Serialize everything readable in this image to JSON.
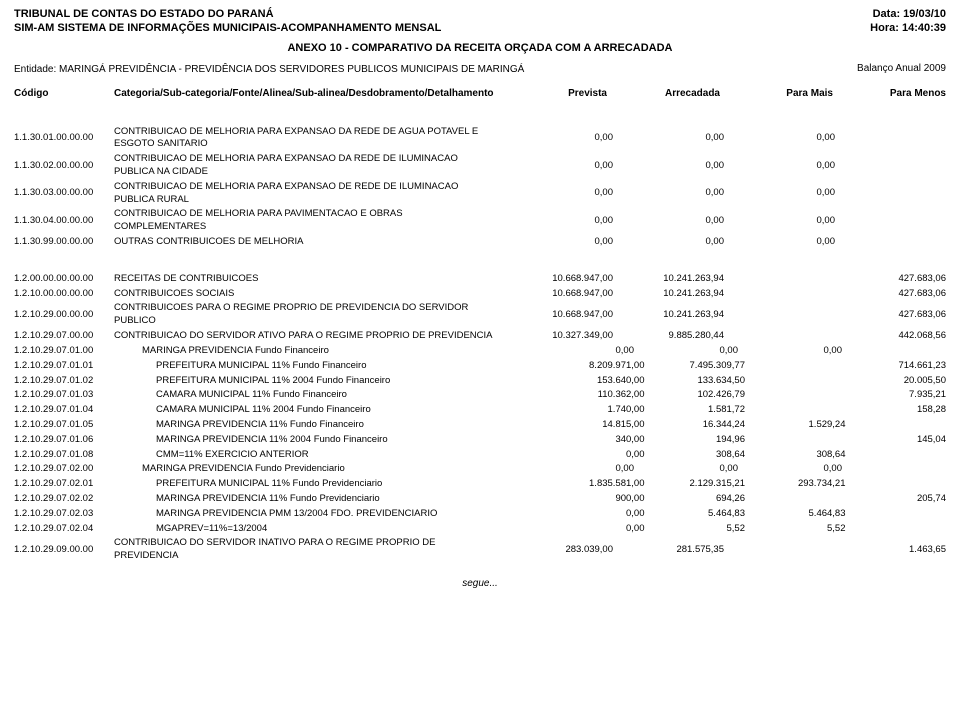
{
  "header": {
    "left1": "TRIBUNAL DE CONTAS DO ESTADO DO PARANÁ",
    "left2": "SIM-AM SISTEMA DE INFORMAÇÕES MUNICIPAIS-ACOMPANHAMENTO MENSAL",
    "right1": "Data: 19/03/10",
    "right2": "Hora: 14:40:39",
    "anexo": "ANEXO 10 - COMPARATIVO DA RECEITA ORÇADA COM A ARRECADADA",
    "entidade": "Entidade: MARINGÁ PREVIDÊNCIA - PREVIDÊNCIA DOS SERVIDORES PUBLICOS MUNICIPAIS DE MARINGÁ",
    "balanco": "Balanço Anual 2009"
  },
  "colhead": {
    "codigo": "Código",
    "desc": "Categoria/Sub-categoria/Fonte/Alinea/Sub-alinea/Desdobramento/Detalhamento",
    "prevista": "Prevista",
    "arrecadada": "Arrecadada",
    "paraMais": "Para Mais",
    "paraMenos": "Para Menos"
  },
  "block1": [
    {
      "code": "1.1.30.01.00.00.00",
      "desc": "CONTRIBUICAO DE MELHORIA PARA EXPANSAO DA REDE DE AGUA POTAVEL E ESGOTO SANITARIO",
      "v": [
        "0,00",
        "0,00",
        "0,00",
        ""
      ]
    },
    {
      "code": "1.1.30.02.00.00.00",
      "desc": "CONTRIBUICAO DE MELHORIA PARA EXPANSAO DA REDE DE ILUMINACAO PUBLICA NA CIDADE",
      "v": [
        "0,00",
        "0,00",
        "0,00",
        ""
      ]
    },
    {
      "code": "1.1.30.03.00.00.00",
      "desc": "CONTRIBUICAO DE MELHORIA PARA EXPANSAO DE REDE DE ILUMINACAO PUBLICA RURAL",
      "v": [
        "0,00",
        "0,00",
        "0,00",
        ""
      ]
    },
    {
      "code": "1.1.30.04.00.00.00",
      "desc": "CONTRIBUICAO DE MELHORIA PARA PAVIMENTACAO E OBRAS COMPLEMENTARES",
      "v": [
        "0,00",
        "0,00",
        "0,00",
        ""
      ]
    },
    {
      "code": "1.1.30.99.00.00.00",
      "desc": "OUTRAS CONTRIBUICOES DE MELHORIA",
      "v": [
        "0,00",
        "0,00",
        "0,00",
        ""
      ]
    }
  ],
  "block2": [
    {
      "code": "1.2.00.00.00.00.00",
      "desc": "RECEITAS DE CONTRIBUICOES",
      "v": [
        "10.668.947,00",
        "10.241.263,94",
        "",
        "427.683,06"
      ]
    },
    {
      "code": "1.2.10.00.00.00.00",
      "desc": "CONTRIBUICOES SOCIAIS",
      "v": [
        "10.668.947,00",
        "10.241.263,94",
        "",
        "427.683,06"
      ]
    },
    {
      "code": "1.2.10.29.00.00.00",
      "desc": "CONTRIBUICOES PARA O REGIME PROPRIO DE PREVIDENCIA DO SERVIDOR PUBLICO",
      "v": [
        "10.668.947,00",
        "10.241.263,94",
        "",
        "427.683,06"
      ]
    },
    {
      "code": "1.2.10.29.07.00.00",
      "desc": "CONTRIBUICAO DO SERVIDOR ATIVO PARA O REGIME PROPRIO DE PREVIDENCIA",
      "v": [
        "10.327.349,00",
        "9.885.280,44",
        "",
        "442.068,56"
      ]
    },
    {
      "code": "1.2.10.29.07.01.00",
      "desc": "MARINGA PREVIDENCIA Fundo Financeiro",
      "v": [
        "0,00",
        "0,00",
        "0,00",
        ""
      ],
      "indent": 2
    },
    {
      "code": "1.2.10.29.07.01.01",
      "desc": "PREFEITURA MUNICIPAL 11% Fundo Financeiro",
      "v": [
        "8.209.971,00",
        "7.495.309,77",
        "",
        "714.661,23"
      ],
      "indent": 3
    },
    {
      "code": "1.2.10.29.07.01.02",
      "desc": "PREFEITURA MUNICIPAL 11% 2004 Fundo Financeiro",
      "v": [
        "153.640,00",
        "133.634,50",
        "",
        "20.005,50"
      ],
      "indent": 3
    },
    {
      "code": "1.2.10.29.07.01.03",
      "desc": "CAMARA MUNICIPAL 11% Fundo Financeiro",
      "v": [
        "110.362,00",
        "102.426,79",
        "",
        "7.935,21"
      ],
      "indent": 3
    },
    {
      "code": "1.2.10.29.07.01.04",
      "desc": "CAMARA MUNICIPAL 11% 2004 Fundo Financeiro",
      "v": [
        "1.740,00",
        "1.581,72",
        "",
        "158,28"
      ],
      "indent": 3
    },
    {
      "code": "1.2.10.29.07.01.05",
      "desc": "MARINGA PREVIDENCIA 11% Fundo Financeiro",
      "v": [
        "14.815,00",
        "16.344,24",
        "1.529,24",
        ""
      ],
      "indent": 3
    },
    {
      "code": "1.2.10.29.07.01.06",
      "desc": "MARINGA PREVIDENCIA 11% 2004 Fundo Financeiro",
      "v": [
        "340,00",
        "194,96",
        "",
        "145,04"
      ],
      "indent": 3
    },
    {
      "code": "1.2.10.29.07.01.08",
      "desc": "CMM=11% EXERCICIO ANTERIOR",
      "v": [
        "0,00",
        "308,64",
        "308,64",
        ""
      ],
      "indent": 3
    },
    {
      "code": "1.2.10.29.07.02.00",
      "desc": "MARINGA PREVIDENCIA Fundo Previdenciario",
      "v": [
        "0,00",
        "0,00",
        "0,00",
        ""
      ],
      "indent": 2
    },
    {
      "code": "1.2.10.29.07.02.01",
      "desc": "PREFEITURA MUNICIPAL 11% Fundo Previdenciario",
      "v": [
        "1.835.581,00",
        "2.129.315,21",
        "293.734,21",
        ""
      ],
      "indent": 3
    },
    {
      "code": "1.2.10.29.07.02.02",
      "desc": "MARINGA PREVIDENCIA 11% Fundo Previdenciario",
      "v": [
        "900,00",
        "694,26",
        "",
        "205,74"
      ],
      "indent": 3
    },
    {
      "code": "1.2.10.29.07.02.03",
      "desc": "MARINGA PREVIDENCIA PMM 13/2004 FDO. PREVIDENCIARIO",
      "v": [
        "0,00",
        "5.464,83",
        "5.464,83",
        ""
      ],
      "indent": 3
    },
    {
      "code": "1.2.10.29.07.02.04",
      "desc": "MGAPREV=11%=13/2004",
      "v": [
        "0,00",
        "5,52",
        "5,52",
        ""
      ],
      "indent": 3
    },
    {
      "code": "1.2.10.29.09.00.00",
      "desc": "CONTRIBUICAO DO SERVIDOR INATIVO PARA O REGIME PROPRIO DE PREVIDENCIA",
      "v": [
        "283.039,00",
        "281.575,35",
        "",
        "1.463,65"
      ]
    }
  ],
  "segue": "segue..."
}
